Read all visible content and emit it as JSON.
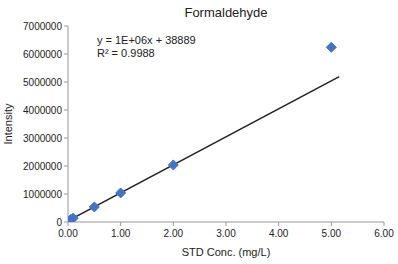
{
  "chart_data": {
    "type": "scatter",
    "title": "Formaldehyde",
    "x_label": "STD Conc. (mg/L)",
    "y_label": "Intensity",
    "series": [
      {
        "type": "line",
        "color": "#222222",
        "x": [
          0.0,
          5.15
        ],
        "values": [
          38889,
          5188889
        ]
      },
      {
        "type": "scatter",
        "color": "#4472C4",
        "marker": "diamond",
        "x": [
          0.05,
          0.1,
          0.5,
          1.0,
          2.0,
          5.0
        ],
        "values": [
          88889,
          138889,
          538889,
          1038889,
          2038889,
          6238889
        ]
      }
    ],
    "annotation": {
      "text": [
        "y = 1E+06x + 38889",
        "R² = 0.9988"
      ],
      "x": 0.55,
      "y": 6700000
    },
    "xlim": [
      0.0,
      6.0
    ],
    "ylim": [
      0,
      7000000
    ],
    "xticks": [
      {
        "value": 0.0,
        "label": "0.00"
      },
      {
        "value": 1.0,
        "label": "1.00"
      },
      {
        "value": 2.0,
        "label": "2.00"
      },
      {
        "value": 3.0,
        "label": "3.00"
      },
      {
        "value": 4.0,
        "label": "4.00"
      },
      {
        "value": 5.0,
        "label": "5.00"
      },
      {
        "value": 6.0,
        "label": "6.00"
      }
    ],
    "yticks": [
      0,
      1000000,
      2000000,
      3000000,
      4000000,
      5000000,
      6000000,
      7000000
    ],
    "grid": false
  }
}
